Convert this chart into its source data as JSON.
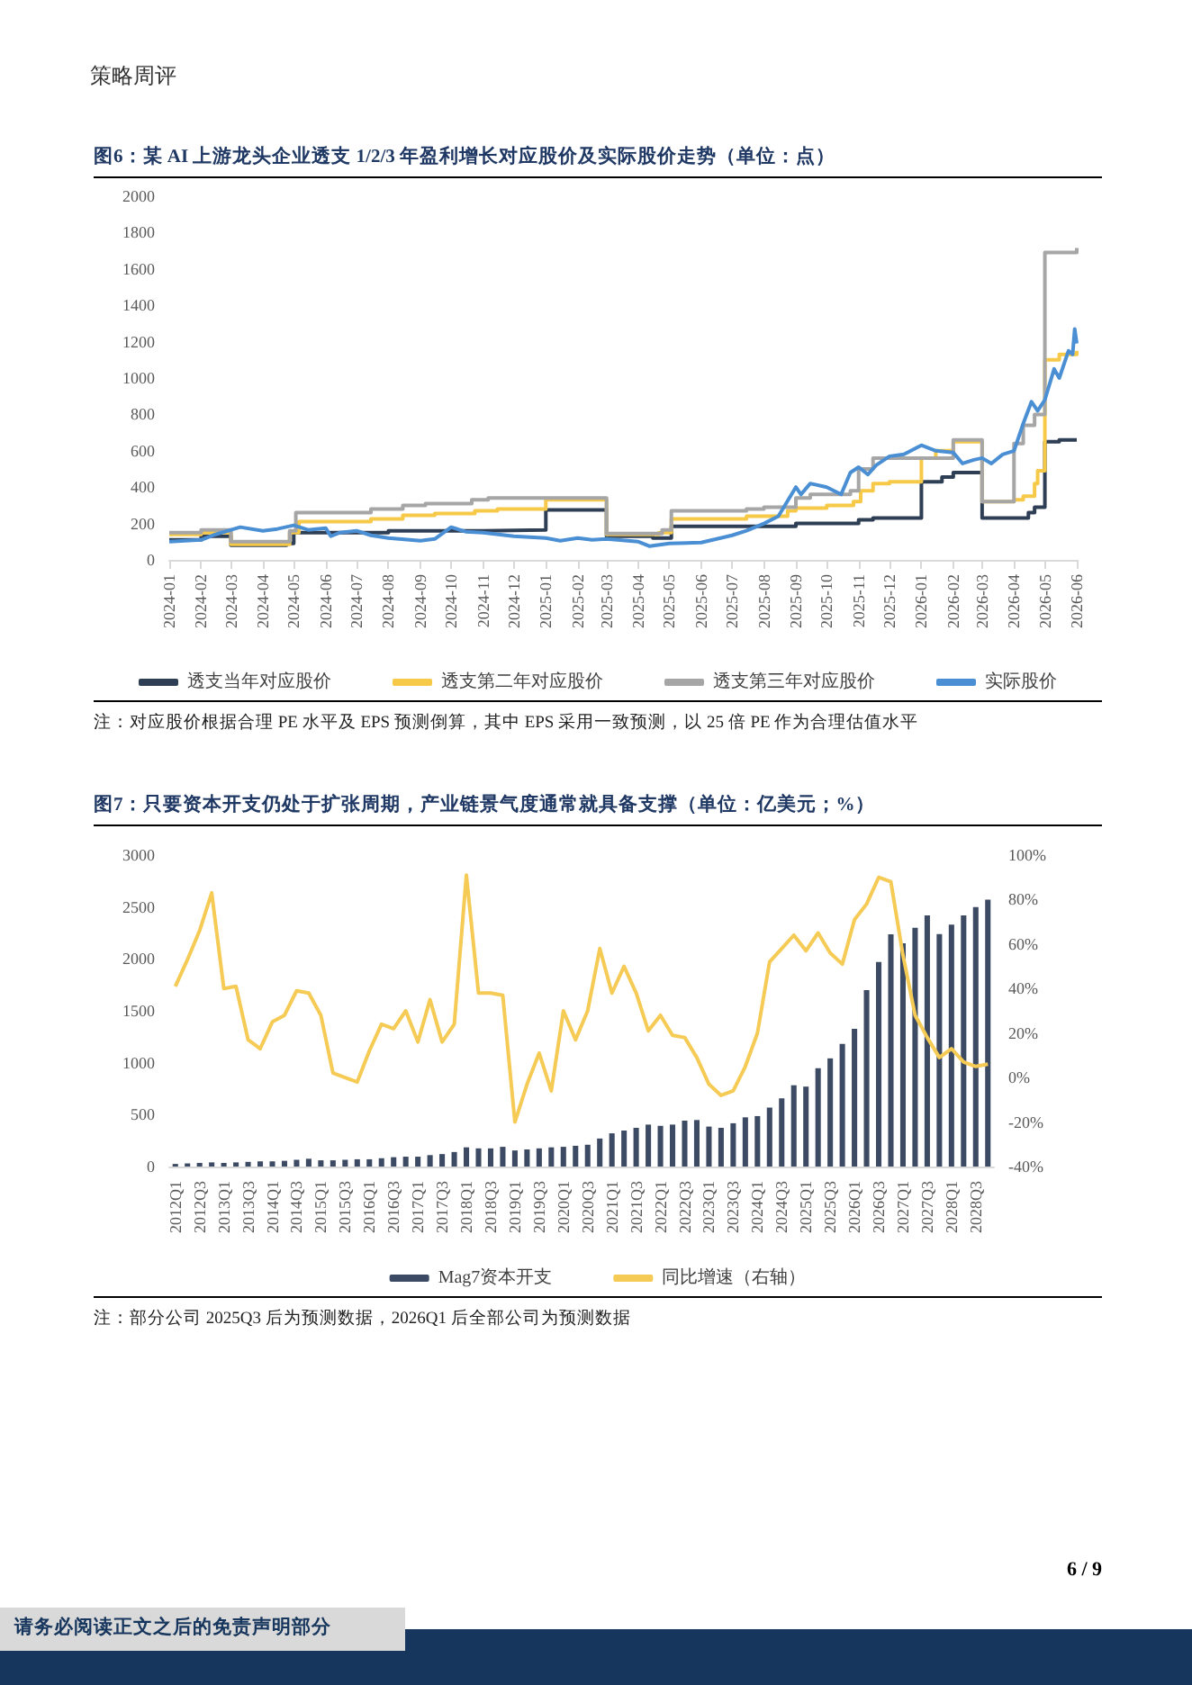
{
  "chart_data": [
    {
      "type": "step",
      "title": "图6：某 AI 上游龙头企业透支 1/2/3 年盈利增长对应股价及实际股价走势（单位：点）",
      "annotations": [
        "策略周评",
        "注：对应股价根据合理 PE 水平及 EPS 预测倒算，其中 EPS 采用一致预测，以 25 倍 PE 作为合理估值水平"
      ],
      "legend": "bottom",
      "xlim": [
        "2024-01-01",
        "2026-06-01"
      ],
      "xticks": [
        "2024-01",
        "2024-02",
        "2024-03",
        "2024-04",
        "2024-05",
        "2024-06",
        "2024-07",
        "2024-08",
        "2024-09",
        "2024-10",
        "2024-11",
        "2024-12",
        "2025-01",
        "2025-02",
        "2025-03",
        "2025-04",
        "2025-05",
        "2025-06",
        "2025-07",
        "2025-08",
        "2025-09",
        "2025-10",
        "2025-11",
        "2025-12",
        "2026-01",
        "2026-02",
        "2026-03",
        "2026-04",
        "2026-05",
        "2026-06"
      ],
      "ylim": [
        0,
        2000
      ],
      "yticks": [
        0,
        200,
        400,
        600,
        800,
        1000,
        1200,
        1400,
        1600,
        1800,
        2000
      ],
      "series": [
        {
          "name": "透支当年对应股价",
          "color": "#2e3f55",
          "x": [
            "2024-01-01",
            "2024-02-01",
            "2024-03-01",
            "2024-04-24",
            "2024-05-01",
            "2024-08-01",
            "2024-11-01",
            "2025-01-01",
            "2025-03-01",
            "2025-04-15",
            "2025-05-03",
            "2025-09-01",
            "2025-11-01",
            "2025-11-15",
            "2026-01-01",
            "2026-01-21",
            "2026-02-01",
            "2026-03-01",
            "2026-04-15",
            "2026-04-21",
            "2026-05-01",
            "2026-05-15",
            "2026-06-01"
          ],
          "values": [
            110,
            130,
            80,
            90,
            150,
            160,
            165,
            275,
            130,
            120,
            185,
            200,
            220,
            230,
            430,
            455,
            480,
            230,
            260,
            290,
            650,
            660,
            665
          ]
        },
        {
          "name": "透支第二年对应股价",
          "color": "#f7c948",
          "x": [
            "2024-01-01",
            "2024-02-01",
            "2024-03-01",
            "2024-04-27",
            "2024-05-06",
            "2024-07-15",
            "2024-08-15",
            "2024-09-15",
            "2024-10-24",
            "2024-11-15",
            "2025-01-01",
            "2025-03-01",
            "2025-04-21",
            "2025-05-03",
            "2025-07-15",
            "2025-08-24",
            "2025-09-01",
            "2025-10-01",
            "2025-10-27",
            "2025-11-03",
            "2025-11-15",
            "2025-12-01",
            "2026-01-01",
            "2026-01-15",
            "2026-02-01",
            "2026-03-01",
            "2026-04-01",
            "2026-04-10",
            "2026-04-21",
            "2026-04-24",
            "2026-05-01",
            "2026-05-15",
            "2026-06-01"
          ],
          "values": [
            140,
            150,
            85,
            150,
            210,
            225,
            245,
            255,
            270,
            280,
            330,
            140,
            150,
            225,
            240,
            270,
            285,
            300,
            320,
            380,
            420,
            430,
            560,
            600,
            650,
            320,
            330,
            350,
            420,
            490,
            1100,
            1130,
            1150
          ]
        },
        {
          "name": "透支第三年对应股价",
          "color": "#a6a6a6",
          "x": [
            "2024-01-01",
            "2024-02-01",
            "2024-03-01",
            "2024-04-27",
            "2024-05-03",
            "2024-07-15",
            "2024-08-15",
            "2024-09-06",
            "2024-10-21",
            "2024-11-06",
            "2025-03-01",
            "2025-04-24",
            "2025-05-03",
            "2025-07-15",
            "2025-08-01",
            "2025-09-01",
            "2025-09-15",
            "2025-10-24",
            "2025-11-01",
            "2025-11-15",
            "2026-02-01",
            "2026-03-01",
            "2026-04-01",
            "2026-04-10",
            "2026-04-21",
            "2026-05-01",
            "2026-06-01"
          ],
          "values": [
            150,
            165,
            100,
            160,
            260,
            280,
            300,
            310,
            330,
            340,
            145,
            165,
            270,
            280,
            290,
            340,
            360,
            380,
            500,
            560,
            660,
            320,
            640,
            740,
            800,
            1690,
            1715
          ]
        },
        {
          "name": "实际股价",
          "type": "line",
          "color": "#4a8fd4",
          "x": [
            "2024-01-01",
            "2024-02-01",
            "2024-02-15",
            "2024-03-01",
            "2024-03-10",
            "2024-04-01",
            "2024-04-15",
            "2024-05-01",
            "2024-05-15",
            "2024-06-01",
            "2024-06-06",
            "2024-06-15",
            "2024-07-01",
            "2024-07-15",
            "2024-08-01",
            "2024-09-01",
            "2024-09-15",
            "2024-10-01",
            "2024-10-15",
            "2024-11-01",
            "2024-12-01",
            "2025-01-01",
            "2025-01-15",
            "2025-02-01",
            "2025-02-15",
            "2025-03-01",
            "2025-04-01",
            "2025-04-12",
            "2025-05-01",
            "2025-06-01",
            "2025-07-01",
            "2025-07-15",
            "2025-08-01",
            "2025-08-15",
            "2025-09-01",
            "2025-09-06",
            "2025-09-15",
            "2025-10-01",
            "2025-10-15",
            "2025-10-24",
            "2025-11-01",
            "2025-11-10",
            "2025-11-18",
            "2025-12-01",
            "2025-12-15",
            "2026-01-01",
            "2026-01-15",
            "2026-02-01",
            "2026-02-10",
            "2026-02-21",
            "2026-03-01",
            "2026-03-10",
            "2026-03-21",
            "2026-04-01",
            "2026-04-10",
            "2026-04-18",
            "2026-04-24",
            "2026-05-01",
            "2026-05-10",
            "2026-05-15",
            "2026-05-24",
            "2026-05-28",
            "2026-05-30",
            "2026-06-01"
          ],
          "values": [
            100,
            110,
            140,
            165,
            180,
            160,
            170,
            190,
            165,
            175,
            130,
            150,
            160,
            135,
            120,
            105,
            115,
            180,
            155,
            150,
            130,
            120,
            105,
            120,
            110,
            115,
            100,
            75,
            90,
            95,
            135,
            160,
            200,
            240,
            400,
            360,
            420,
            400,
            360,
            480,
            510,
            470,
            520,
            570,
            580,
            630,
            600,
            590,
            530,
            550,
            560,
            530,
            580,
            600,
            750,
            870,
            820,
            880,
            1050,
            1000,
            1150,
            1130,
            1270,
            1190
          ]
        }
      ]
    },
    {
      "type": "bar",
      "title": "图7：只要资本开支仍处于扩张周期，产业链景气度通常就具备支撑（单位：亿美元；%）",
      "annotations": [
        "注：部分公司 2025Q3 后为预测数据，2026Q1 后全部公司为预测数据",
        "请务必阅读正文之后的免责声明部分",
        "6 / 9"
      ],
      "legend": "bottom",
      "categories": [
        "2012Q1",
        null,
        "2012Q3",
        null,
        "2013Q1",
        null,
        "2013Q3",
        null,
        "2014Q1",
        null,
        "2014Q3",
        null,
        "2015Q1",
        null,
        "2015Q3",
        null,
        "2016Q1",
        null,
        "2016Q3",
        null,
        "2017Q1",
        null,
        "2017Q3",
        null,
        "2018Q1",
        null,
        "2018Q3",
        null,
        "2019Q1",
        null,
        "2019Q3",
        null,
        "2020Q1",
        null,
        "2020Q3",
        null,
        "2021Q1",
        null,
        "2021Q3",
        null,
        "2022Q1",
        null,
        "2022Q3",
        null,
        "2023Q1",
        null,
        "2023Q3",
        null,
        "2024Q1",
        null,
        "2024Q3",
        null,
        "2025Q1",
        null,
        "2025Q3",
        null,
        "2026Q1",
        null,
        "2026Q3",
        null,
        "2027Q1",
        null,
        "2027Q3",
        null,
        "2028Q1",
        null,
        "2028Q3",
        null
      ],
      "ylim": [
        0,
        3000
      ],
      "yticks": [
        0,
        500,
        1000,
        1500,
        2000,
        2500,
        3000
      ],
      "y2lim": [
        -40,
        100
      ],
      "y2ticks": [
        {
          "value": -40,
          "label": "-40%"
        },
        {
          "value": -20,
          "label": "-20%"
        },
        {
          "value": 0,
          "label": "0%"
        },
        {
          "value": 20,
          "label": "20%"
        },
        {
          "value": 40,
          "label": "40%"
        },
        {
          "value": 60,
          "label": "60%"
        },
        {
          "value": 80,
          "label": "80%"
        },
        {
          "value": 100,
          "label": "100%"
        }
      ],
      "series": [
        {
          "name": "Mag7资本开支",
          "color": "#3c4a63",
          "values": [
            25,
            30,
            35,
            40,
            35,
            40,
            45,
            50,
            50,
            55,
            65,
            75,
            60,
            60,
            65,
            70,
            70,
            80,
            90,
            95,
            95,
            110,
            120,
            140,
            185,
            175,
            175,
            190,
            155,
            165,
            175,
            185,
            190,
            200,
            210,
            270,
            320,
            347,
            373,
            404,
            392,
            404,
            442,
            448,
            385,
            373,
            417,
            474,
            486,
            568,
            657,
            783,
            770,
            947,
            1042,
            1181,
            1326,
            1699,
            1971,
            2236,
            2150,
            2300,
            2420,
            2240,
            2330,
            2420,
            2500,
            2570
          ]
        },
        {
          "name": "同比增速（右轴）",
          "type": "line",
          "axis": "y2",
          "color": "#f5cb55",
          "values": [
            41,
            53,
            66,
            83,
            40,
            41,
            17,
            13,
            25,
            28,
            39,
            38,
            28,
            2,
            0,
            -2,
            12,
            24,
            22,
            30,
            16,
            35,
            16,
            24,
            91,
            38,
            38,
            37,
            -20,
            -3,
            11,
            -6,
            30,
            17,
            30,
            58,
            38,
            50,
            38,
            21,
            28,
            19,
            18,
            9,
            -3,
            -8,
            -6,
            5,
            20,
            52,
            58,
            64,
            57,
            65,
            56,
            51,
            71,
            78,
            90,
            88,
            55,
            28,
            18,
            9,
            13,
            7,
            5,
            6
          ]
        }
      ]
    }
  ]
}
